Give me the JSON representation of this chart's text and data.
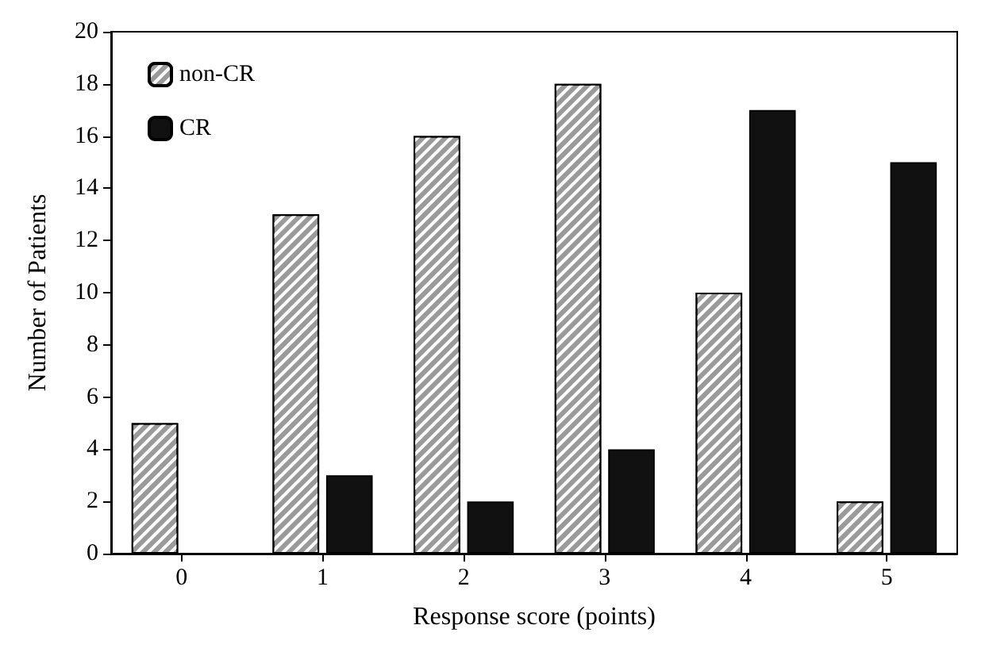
{
  "chart_data": {
    "type": "bar",
    "xlabel": "Response score (points)",
    "ylabel": "Number of Patients",
    "categories": [
      "0",
      "1",
      "2",
      "3",
      "4",
      "5"
    ],
    "series": [
      {
        "name": "non-CR",
        "color": "#9a9a9a",
        "values": [
          5,
          13,
          16,
          18,
          10,
          2
        ]
      },
      {
        "name": "CR",
        "color": "#111111",
        "values": [
          null,
          3,
          2,
          4,
          17,
          15
        ]
      }
    ],
    "ylim": [
      0,
      20
    ],
    "yticks": [
      0,
      2,
      4,
      6,
      8,
      10,
      12,
      14,
      16,
      18,
      20
    ],
    "grid": false,
    "legend": "top left"
  }
}
